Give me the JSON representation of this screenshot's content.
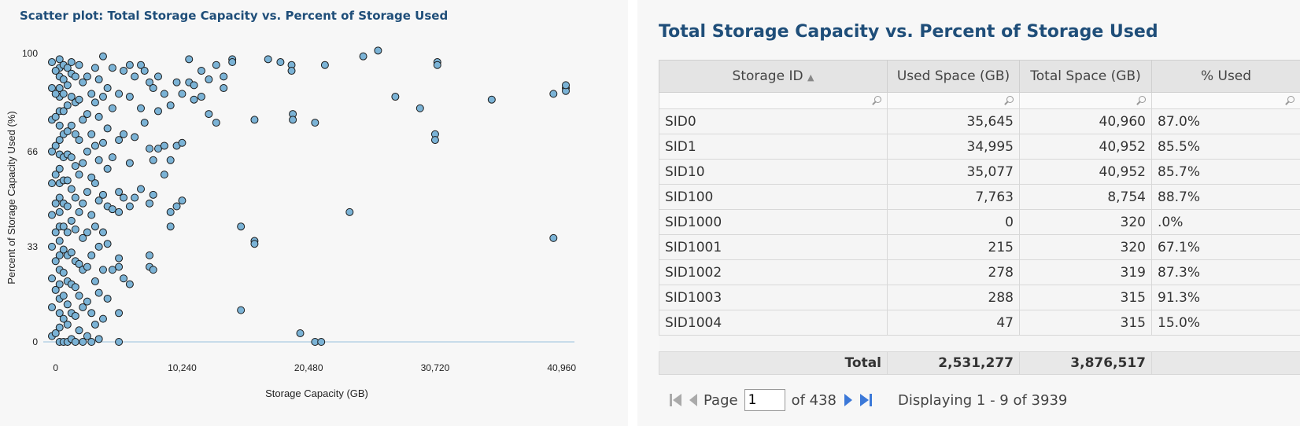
{
  "chart_data": {
    "type": "scatter",
    "title": "Scatter plot: Total Storage Capacity vs. Percent of Storage Used",
    "xlabel": "Storage Capacity (GB)",
    "ylabel": "Percent of Storage Capacity Used (%)",
    "xlim": [
      -1000,
      42000
    ],
    "ylim": [
      -3,
      103
    ],
    "xticks": [
      0,
      10240,
      20480,
      30720,
      40960
    ],
    "xtick_labels": [
      "0",
      "10,240",
      "20,480",
      "30,720",
      "40,960"
    ],
    "yticks": [
      0,
      33,
      66,
      100
    ],
    "ytick_labels": [
      "0",
      "33",
      "66",
      "100"
    ],
    "point_color": "#7bb3d6",
    "points": [
      [
        320,
        0
      ],
      [
        320,
        5
      ],
      [
        320,
        10
      ],
      [
        320,
        15
      ],
      [
        320,
        20
      ],
      [
        320,
        25
      ],
      [
        320,
        30
      ],
      [
        320,
        35
      ],
      [
        320,
        40
      ],
      [
        320,
        45
      ],
      [
        320,
        50
      ],
      [
        320,
        55
      ],
      [
        320,
        60
      ],
      [
        320,
        65
      ],
      [
        320,
        70
      ],
      [
        320,
        75
      ],
      [
        320,
        80
      ],
      [
        320,
        85
      ],
      [
        320,
        88
      ],
      [
        320,
        92
      ],
      [
        320,
        95
      ],
      [
        320,
        98
      ],
      [
        -300,
        2
      ],
      [
        -300,
        12
      ],
      [
        -300,
        22
      ],
      [
        -300,
        33
      ],
      [
        -300,
        44
      ],
      [
        -300,
        55
      ],
      [
        -300,
        66
      ],
      [
        -300,
        77
      ],
      [
        -300,
        88
      ],
      [
        -300,
        97
      ],
      [
        0,
        3
      ],
      [
        0,
        18
      ],
      [
        0,
        28
      ],
      [
        0,
        38
      ],
      [
        0,
        48
      ],
      [
        0,
        58
      ],
      [
        0,
        68
      ],
      [
        0,
        78
      ],
      [
        0,
        86
      ],
      [
        0,
        94
      ],
      [
        640,
        0
      ],
      [
        640,
        8
      ],
      [
        640,
        16
      ],
      [
        640,
        24
      ],
      [
        640,
        32
      ],
      [
        640,
        40
      ],
      [
        640,
        48
      ],
      [
        640,
        56
      ],
      [
        640,
        64
      ],
      [
        640,
        72
      ],
      [
        640,
        80
      ],
      [
        640,
        86
      ],
      [
        640,
        91
      ],
      [
        640,
        96
      ],
      [
        960,
        0
      ],
      [
        960,
        6
      ],
      [
        960,
        13
      ],
      [
        960,
        21
      ],
      [
        960,
        30
      ],
      [
        960,
        38
      ],
      [
        960,
        47
      ],
      [
        960,
        56
      ],
      [
        960,
        65
      ],
      [
        960,
        73
      ],
      [
        960,
        82
      ],
      [
        960,
        89
      ],
      [
        960,
        95
      ],
      [
        1280,
        1
      ],
      [
        1280,
        10
      ],
      [
        1280,
        20
      ],
      [
        1280,
        31
      ],
      [
        1280,
        42
      ],
      [
        1280,
        53
      ],
      [
        1280,
        64
      ],
      [
        1280,
        75
      ],
      [
        1280,
        85
      ],
      [
        1280,
        93
      ],
      [
        1280,
        97
      ],
      [
        1600,
        0
      ],
      [
        1600,
        9
      ],
      [
        1600,
        19
      ],
      [
        1600,
        28
      ],
      [
        1600,
        39
      ],
      [
        1600,
        50
      ],
      [
        1600,
        61
      ],
      [
        1600,
        72
      ],
      [
        1600,
        83
      ],
      [
        1600,
        92
      ],
      [
        1900,
        4
      ],
      [
        1900,
        16
      ],
      [
        1900,
        27
      ],
      [
        1900,
        45
      ],
      [
        1900,
        58
      ],
      [
        1900,
        70
      ],
      [
        1900,
        84
      ],
      [
        1900,
        96
      ],
      [
        2200,
        0
      ],
      [
        2200,
        12
      ],
      [
        2200,
        25
      ],
      [
        2200,
        36
      ],
      [
        2200,
        48
      ],
      [
        2200,
        62
      ],
      [
        2200,
        77
      ],
      [
        2200,
        90
      ],
      [
        2560,
        2
      ],
      [
        2560,
        14
      ],
      [
        2560,
        26
      ],
      [
        2560,
        38
      ],
      [
        2560,
        52
      ],
      [
        2560,
        66
      ],
      [
        2560,
        79
      ],
      [
        2560,
        92
      ],
      [
        2900,
        0
      ],
      [
        2900,
        10
      ],
      [
        2900,
        30
      ],
      [
        2900,
        44
      ],
      [
        2900,
        57
      ],
      [
        2900,
        72
      ],
      [
        2900,
        86
      ],
      [
        3200,
        6
      ],
      [
        3200,
        21
      ],
      [
        3200,
        40
      ],
      [
        3200,
        55
      ],
      [
        3200,
        68
      ],
      [
        3200,
        83
      ],
      [
        3200,
        95
      ],
      [
        3500,
        1
      ],
      [
        3500,
        17
      ],
      [
        3500,
        33
      ],
      [
        3500,
        49
      ],
      [
        3500,
        63
      ],
      [
        3500,
        78
      ],
      [
        3500,
        91
      ],
      [
        3840,
        8
      ],
      [
        3840,
        25
      ],
      [
        3840,
        38
      ],
      [
        3840,
        51
      ],
      [
        3840,
        69
      ],
      [
        3840,
        85
      ],
      [
        3840,
        99
      ],
      [
        4200,
        15
      ],
      [
        4200,
        34
      ],
      [
        4200,
        47
      ],
      [
        4200,
        60
      ],
      [
        4200,
        74
      ],
      [
        4200,
        88
      ],
      [
        4600,
        25
      ],
      [
        4600,
        46
      ],
      [
        4600,
        64
      ],
      [
        4600,
        81
      ],
      [
        4600,
        95
      ],
      [
        5120,
        0
      ],
      [
        5120,
        10
      ],
      [
        5120,
        26
      ],
      [
        5120,
        29
      ],
      [
        5120,
        45
      ],
      [
        5120,
        52
      ],
      [
        5120,
        70
      ],
      [
        5120,
        86
      ],
      [
        5500,
        22
      ],
      [
        5500,
        50
      ],
      [
        5500,
        72
      ],
      [
        5500,
        94
      ],
      [
        6000,
        20
      ],
      [
        6000,
        47
      ],
      [
        6000,
        62
      ],
      [
        6000,
        85
      ],
      [
        6000,
        96
      ],
      [
        6400,
        50
      ],
      [
        6400,
        71
      ],
      [
        6400,
        92
      ],
      [
        6900,
        53
      ],
      [
        6900,
        81
      ],
      [
        6900,
        96
      ],
      [
        7200,
        76
      ],
      [
        7200,
        94
      ],
      [
        7600,
        30
      ],
      [
        7600,
        26
      ],
      [
        7600,
        48
      ],
      [
        7600,
        67
      ],
      [
        7600,
        90
      ],
      [
        7900,
        25
      ],
      [
        7900,
        51
      ],
      [
        7900,
        63
      ],
      [
        7900,
        88
      ],
      [
        8300,
        80
      ],
      [
        8300,
        67
      ],
      [
        8300,
        92
      ],
      [
        8800,
        58
      ],
      [
        8800,
        68
      ],
      [
        8800,
        86
      ],
      [
        9300,
        40
      ],
      [
        9300,
        45
      ],
      [
        9300,
        63
      ],
      [
        9300,
        82
      ],
      [
        9800,
        47
      ],
      [
        9800,
        68
      ],
      [
        9800,
        90
      ],
      [
        10240,
        49
      ],
      [
        10240,
        69
      ],
      [
        10240,
        86
      ],
      [
        10800,
        98
      ],
      [
        10800,
        90
      ],
      [
        11200,
        89
      ],
      [
        11200,
        84
      ],
      [
        11800,
        85
      ],
      [
        11800,
        94
      ],
      [
        12400,
        91
      ],
      [
        12400,
        79
      ],
      [
        13000,
        96
      ],
      [
        13000,
        76
      ],
      [
        13600,
        92
      ],
      [
        13600,
        88
      ],
      [
        14300,
        98
      ],
      [
        14300,
        97
      ],
      [
        15000,
        11
      ],
      [
        15000,
        40
      ],
      [
        16100,
        77
      ],
      [
        16100,
        35
      ],
      [
        16100,
        34
      ],
      [
        17200,
        98
      ],
      [
        18200,
        97
      ],
      [
        19100,
        96
      ],
      [
        19100,
        94
      ],
      [
        19200,
        79
      ],
      [
        19200,
        77
      ],
      [
        19800,
        3
      ],
      [
        21000,
        0
      ],
      [
        21000,
        76
      ],
      [
        21500,
        0
      ],
      [
        21800,
        96
      ],
      [
        23800,
        45
      ],
      [
        24900,
        99
      ],
      [
        26100,
        101
      ],
      [
        27500,
        85
      ],
      [
        29500,
        81
      ],
      [
        30720,
        72
      ],
      [
        30720,
        70
      ],
      [
        30900,
        97
      ],
      [
        30900,
        96
      ],
      [
        35300,
        84
      ],
      [
        40300,
        36
      ],
      [
        40300,
        86
      ],
      [
        41300,
        88
      ],
      [
        41300,
        87
      ],
      [
        41300,
        89
      ]
    ]
  },
  "table": {
    "title": "Total Storage Capacity vs. Percent of Storage Used",
    "columns": [
      "Storage ID",
      "Used Space (GB)",
      "Total Space (GB)",
      "% Used"
    ],
    "sort_indicator": "▲",
    "rows": [
      [
        "SID0",
        "35,645",
        "40,960",
        "87.0%"
      ],
      [
        "SID1",
        "34,995",
        "40,952",
        "85.5%"
      ],
      [
        "SID10",
        "35,077",
        "40,952",
        "85.7%"
      ],
      [
        "SID100",
        "7,763",
        "8,754",
        "88.7%"
      ],
      [
        "SID1000",
        "0",
        "320",
        ".0%"
      ],
      [
        "SID1001",
        "215",
        "320",
        "67.1%"
      ],
      [
        "SID1002",
        "278",
        "319",
        "87.3%"
      ],
      [
        "SID1003",
        "288",
        "315",
        "91.3%"
      ],
      [
        "SID1004",
        "47",
        "315",
        "15.0%"
      ]
    ],
    "total": [
      "Total",
      "2,531,277",
      "3,876,517",
      ""
    ]
  },
  "pager": {
    "page_label": "Page",
    "page_value": "1",
    "of_label": "of 438",
    "display_text": "Displaying 1 - 9 of 3939"
  }
}
